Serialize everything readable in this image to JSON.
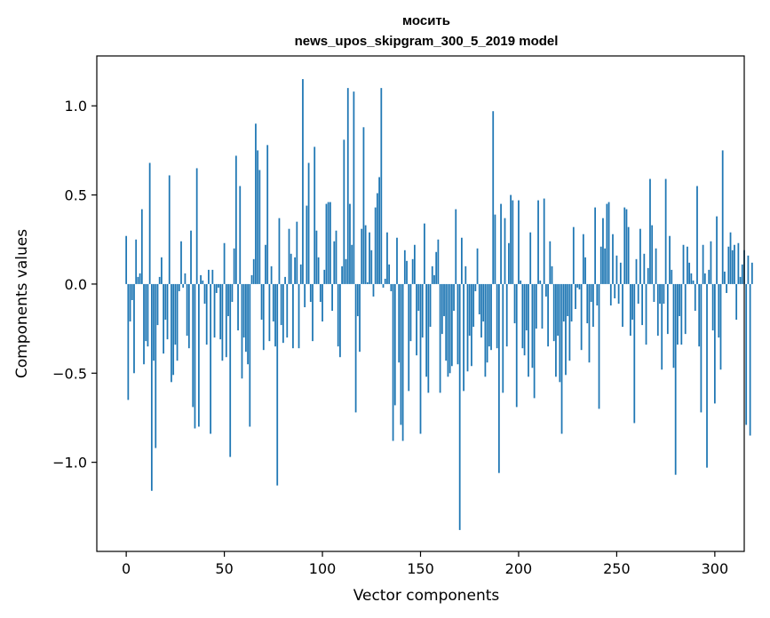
{
  "chart_data": {
    "type": "bar",
    "title": "мосить",
    "subtitle": "news_upos_skipgram_300_5_2019 model",
    "xlabel": "Vector components",
    "ylabel": "Components values",
    "xlim": [
      -15,
      315
    ],
    "ylim": [
      -1.5,
      1.28
    ],
    "xticks": [
      0,
      50,
      100,
      150,
      200,
      250,
      300
    ],
    "yticks": [
      1.0,
      0.5,
      0.0,
      -0.5,
      -1.0
    ],
    "ytick_labels": [
      "1.0",
      "0.5",
      "0.0",
      "−0.5",
      "−1.0"
    ],
    "bar_color": "#1f77b4",
    "grid": false,
    "values": [
      0.27,
      -0.65,
      -0.21,
      -0.09,
      -0.5,
      0.25,
      0.04,
      0.06,
      0.42,
      -0.45,
      -0.32,
      -0.35,
      0.68,
      -1.16,
      -0.43,
      -0.92,
      -0.23,
      0.04,
      0.15,
      -0.39,
      -0.2,
      -0.31,
      0.61,
      -0.55,
      -0.51,
      -0.34,
      -0.43,
      -0.04,
      0.24,
      -0.02,
      0.06,
      -0.29,
      -0.36,
      0.3,
      -0.69,
      -0.81,
      0.65,
      -0.8,
      0.05,
      0.02,
      -0.11,
      -0.34,
      0.08,
      -0.84,
      0.08,
      -0.3,
      -0.05,
      -0.02,
      -0.31,
      -0.43,
      0.23,
      -0.41,
      -0.18,
      -0.97,
      -0.1,
      0.2,
      0.72,
      -0.26,
      0.55,
      -0.53,
      -0.3,
      -0.38,
      -0.45,
      -0.8,
      0.05,
      0.14,
      0.9,
      0.75,
      0.64,
      -0.2,
      -0.37,
      0.22,
      0.78,
      -0.32,
      0.1,
      -0.21,
      -0.35,
      -1.13,
      0.37,
      -0.23,
      -0.33,
      0.04,
      -0.3,
      0.31,
      0.17,
      -0.36,
      0.15,
      0.35,
      -0.36,
      0.11,
      1.15,
      -0.13,
      0.44,
      0.68,
      -0.1,
      -0.32,
      0.77,
      0.3,
      0.15,
      -0.1,
      -0.21,
      0.08,
      0.45,
      0.46,
      0.46,
      -0.15,
      0.24,
      0.3,
      -0.35,
      -0.41,
      0.1,
      0.81,
      0.14,
      1.1,
      0.45,
      0.22,
      1.08,
      -0.72,
      -0.18,
      -0.38,
      0.31,
      0.88,
      0.33,
      0.01,
      0.29,
      0.19,
      -0.07,
      0.43,
      0.51,
      0.6,
      1.1,
      -0.02,
      0.03,
      0.29,
      0.11,
      -0.04,
      -0.88,
      -0.68,
      0.26,
      -0.44,
      -0.79,
      -0.88,
      0.19,
      0.13,
      -0.6,
      -0.32,
      0.14,
      0.22,
      -0.4,
      -0.15,
      -0.84,
      -0.3,
      0.34,
      -0.52,
      -0.61,
      -0.24,
      0.1,
      0.05,
      0.18,
      0.25,
      -0.61,
      -0.28,
      -0.18,
      -0.43,
      -0.52,
      -0.5,
      -0.46,
      -0.15,
      0.42,
      -0.45,
      -1.38,
      0.26,
      -0.6,
      0.1,
      -0.49,
      -0.29,
      -0.46,
      -0.24,
      -0.04,
      0.2,
      -0.17,
      -0.3,
      -0.21,
      -0.52,
      -0.44,
      -0.35,
      -0.37,
      0.97,
      0.39,
      -0.36,
      -1.06,
      0.45,
      -0.61,
      0.37,
      -0.35,
      0.23,
      0.5,
      0.47,
      -0.22,
      -0.69,
      0.47,
      0.02,
      -0.36,
      -0.4,
      -0.26,
      -0.52,
      0.29,
      -0.47,
      -0.64,
      -0.25,
      0.47,
      0.02,
      -0.25,
      0.48,
      -0.07,
      -0.35,
      0.24,
      0.1,
      -0.32,
      -0.52,
      -0.29,
      -0.55,
      -0.84,
      -0.21,
      -0.51,
      -0.18,
      -0.43,
      -0.21,
      0.32,
      -0.14,
      -0.02,
      -0.03,
      -0.37,
      0.28,
      0.15,
      -0.22,
      -0.44,
      -0.1,
      -0.24,
      0.43,
      -0.12,
      -0.7,
      0.21,
      0.37,
      0.2,
      0.45,
      0.46,
      -0.12,
      0.28,
      -0.08,
      0.16,
      -0.11,
      0.12,
      -0.24,
      0.43,
      0.42,
      0.32,
      -0.29,
      -0.2,
      -0.78,
      0.14,
      -0.11,
      0.31,
      -0.23,
      0.17,
      -0.34,
      0.09,
      0.59,
      0.33,
      -0.1,
      0.2,
      -0.29,
      -0.11,
      -0.48,
      -0.11,
      0.59,
      -0.28,
      0.27,
      0.08,
      -0.47,
      -1.07,
      -0.34,
      -0.18,
      -0.34,
      0.22,
      -0.28,
      0.21,
      0.12,
      0.06,
      0.02,
      -0.15,
      0.55,
      -0.35,
      -0.72,
      0.22,
      0.06,
      -1.03,
      0.08,
      0.24,
      -0.26,
      -0.67,
      0.38,
      -0.3,
      -0.48,
      0.75,
      0.07,
      -0.05,
      0.21,
      0.29,
      0.19,
      0.22,
      -0.2,
      0.23,
      0.04,
      0.11,
      0.19,
      -0.79,
      0.16,
      -0.85,
      0.12
    ]
  }
}
